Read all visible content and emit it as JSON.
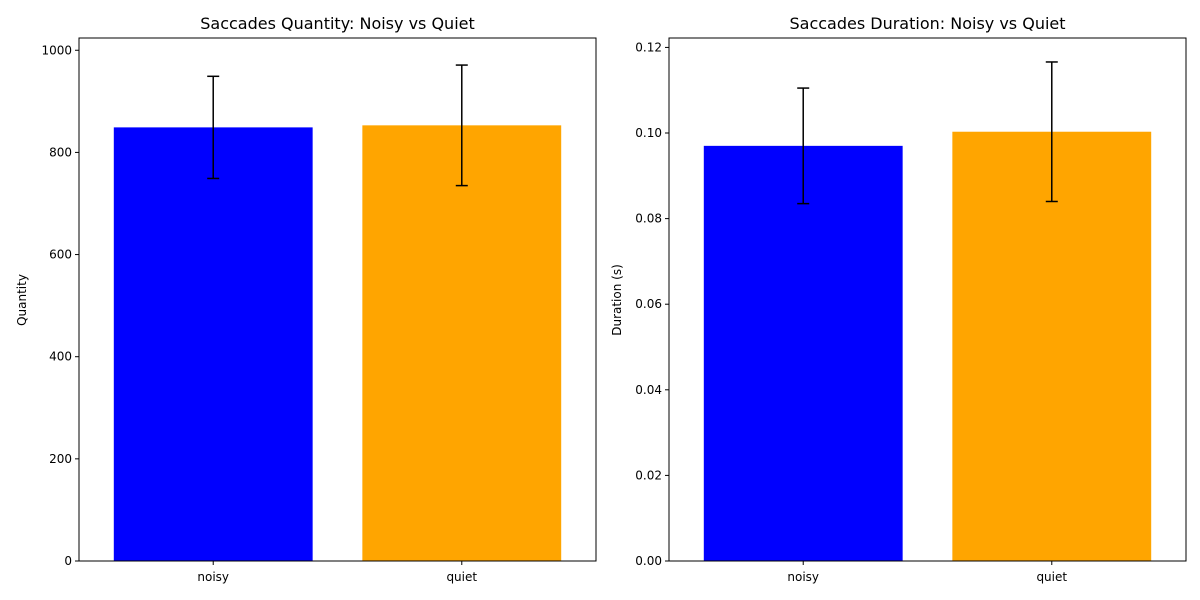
{
  "chart_data": [
    {
      "type": "bar",
      "title": "Saccades Quantity: Noisy vs Quiet",
      "xlabel": "",
      "ylabel": "Quantity",
      "categories": [
        "noisy",
        "quiet"
      ],
      "values": [
        849,
        853
      ],
      "errors": [
        100,
        118
      ],
      "colors": [
        "#0000ff",
        "#ffa500"
      ],
      "ylim": [
        0,
        1024
      ],
      "yticks": [
        0,
        200,
        400,
        600,
        800,
        1000
      ],
      "ytick_labels": [
        "0",
        "200",
        "400",
        "600",
        "800",
        "1000"
      ],
      "grid": false
    },
    {
      "type": "bar",
      "title": "Saccades Duration: Noisy vs Quiet",
      "xlabel": "",
      "ylabel": "Duration (s)",
      "categories": [
        "noisy",
        "quiet"
      ],
      "values": [
        0.097,
        0.1003
      ],
      "errors": [
        0.0135,
        0.0163
      ],
      "colors": [
        "#0000ff",
        "#ffa500"
      ],
      "ylim": [
        0,
        0.1222
      ],
      "yticks": [
        0,
        0.02,
        0.04,
        0.06,
        0.08,
        0.1,
        0.12
      ],
      "ytick_labels": [
        "0.00",
        "0.02",
        "0.04",
        "0.06",
        "0.08",
        "0.10",
        "0.12"
      ],
      "grid": false
    }
  ]
}
